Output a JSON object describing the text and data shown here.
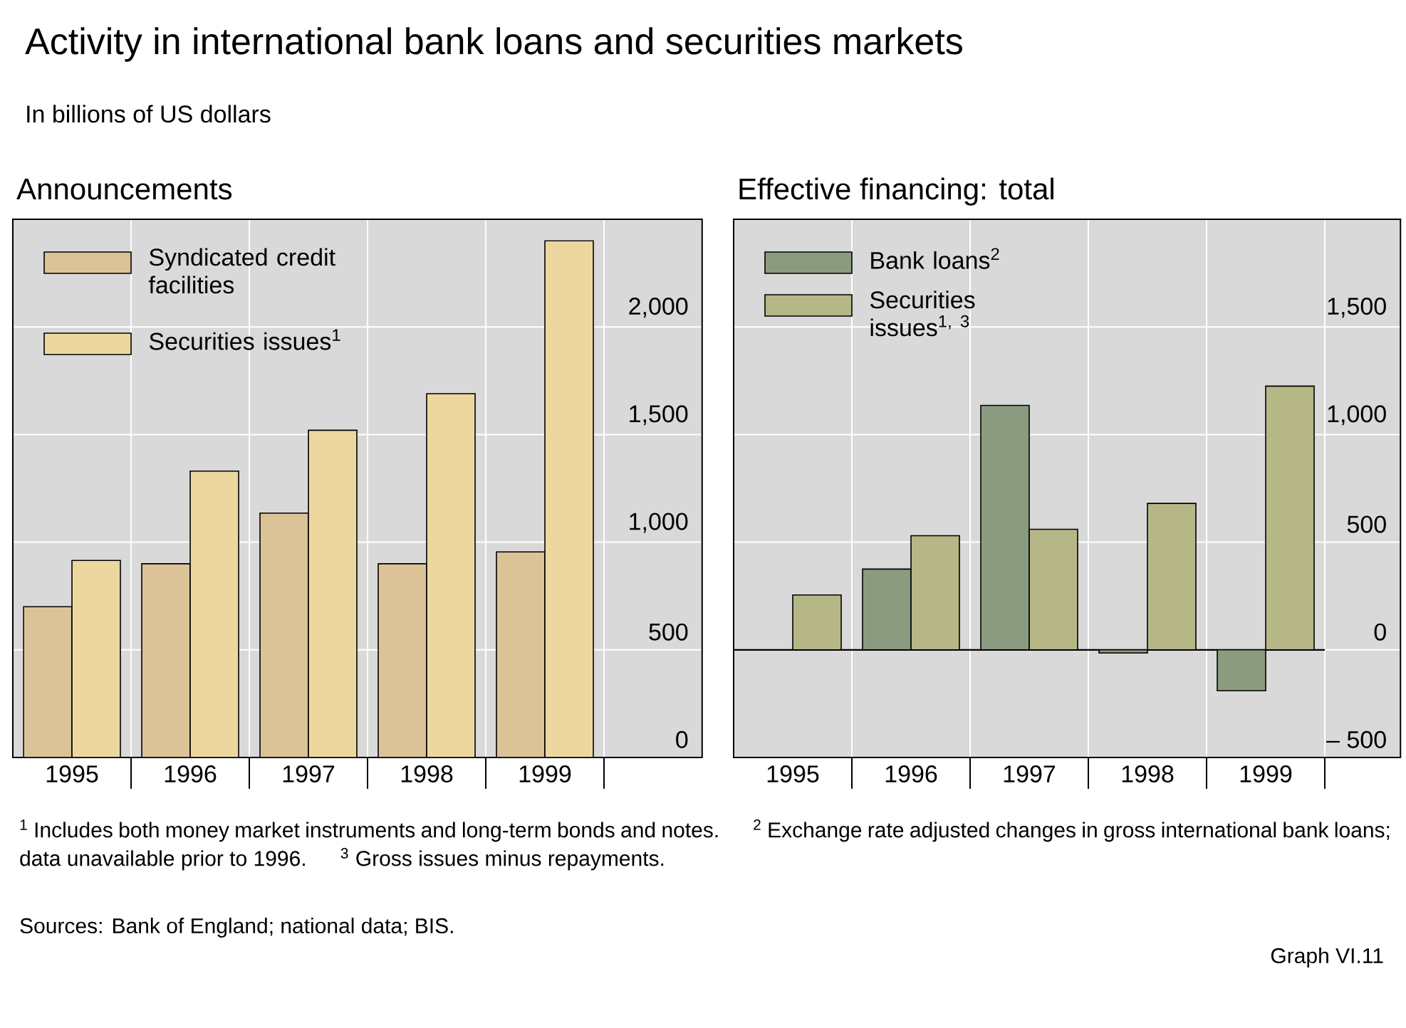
{
  "chart_data": [
    {
      "type": "other",
      "title": "Activity in international bank loans and securities markets",
      "subtitle": "In billions of US dollars",
      "annotations": [
        "$^{1}$ Includes both money market instruments and long-term bonds and notes.",
        "$^{2}$ Exchange rate adjusted changes in gross international bank loans; data unavailable prior to 1996.",
        "$^{3}$ Gross issues minus repayments.",
        "Sources: Bank of England; national data; BIS.",
        "Graph VI.11"
      ]
    },
    {
      "type": "bar",
      "title": "Announcements",
      "categories": [
        "1995",
        "1996",
        "1997",
        "1998",
        "1999"
      ],
      "series": [
        {
          "name": "Syndicated credit facilities",
          "color": "#dbc397",
          "values": [
            700,
            900,
            1135,
            900,
            955
          ]
        },
        {
          "name": "Securities issues$^{1}$",
          "color": "#ecd89e",
          "values": [
            915,
            1330,
            1520,
            1690,
            2400
          ]
        }
      ],
      "ylim": [
        0,
        2500
      ],
      "yticks": [
        0,
        500,
        {
          "value": 1000,
          "label": "1,000"
        },
        {
          "value": 1500,
          "label": "1,500"
        },
        {
          "value": 2000,
          "label": "2,000"
        }
      ],
      "grid": true,
      "legend": "top left"
    },
    {
      "type": "bar",
      "title": "Effective financing: total",
      "categories": [
        "1995",
        "1996",
        "1997",
        "1998",
        "1999"
      ],
      "series": [
        {
          "name": "Bank loans$^{2}$",
          "color": "#8b9b80",
          "values": [
            null,
            375,
            1135,
            -15,
            -190
          ]
        },
        {
          "name": "Securities issues$^{1, 3}$",
          "color": "#b5b787",
          "values": [
            255,
            530,
            560,
            680,
            1225
          ]
        }
      ],
      "ylim": [
        -500,
        2000
      ],
      "yticks": [
        {
          "value": -500,
          "label": "– 500"
        },
        0,
        500,
        {
          "value": 1000,
          "label": "1,000"
        },
        {
          "value": 1500,
          "label": "1,500"
        }
      ],
      "grid": true,
      "legend": "top left"
    }
  ]
}
